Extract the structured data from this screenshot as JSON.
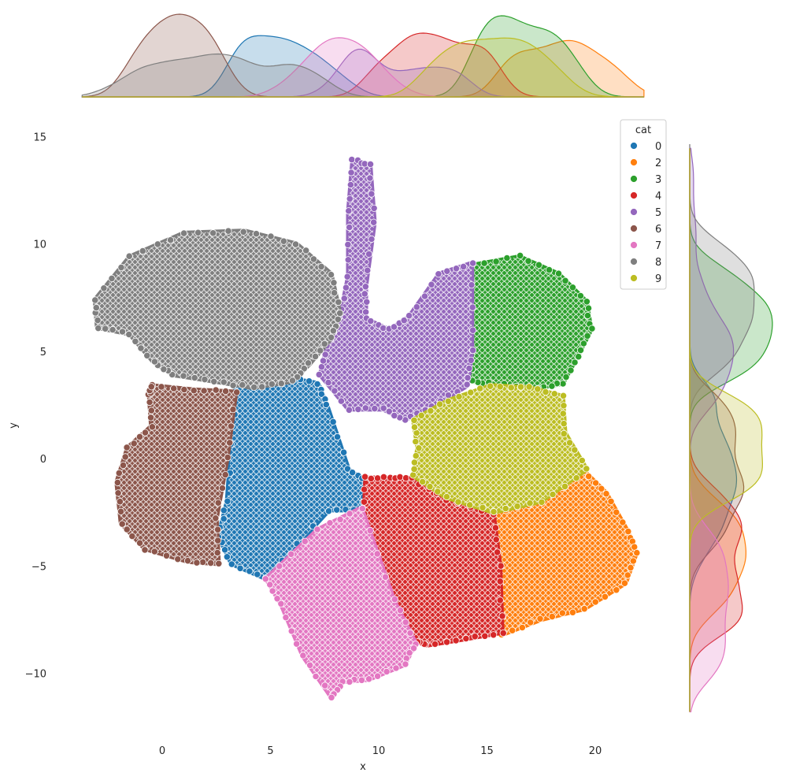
{
  "chart_data": {
    "type": "scatter",
    "title": "",
    "xlabel": "x",
    "ylabel": "y",
    "xlim": [
      -4.2,
      22.9
    ],
    "ylim": [
      -12.8,
      15.5
    ],
    "x_ticks": [
      0,
      5,
      10,
      15,
      20
    ],
    "y_ticks": [
      -10,
      -5,
      0,
      5,
      10,
      15
    ],
    "x_tick_labels": [
      "0",
      "5",
      "10",
      "15",
      "20"
    ],
    "y_tick_labels": [
      "−10",
      "−5",
      "0",
      "5",
      "10",
      "15"
    ],
    "grid": false,
    "legend": {
      "title": "cat",
      "placement": "top-right",
      "entries": [
        "0",
        "2",
        "3",
        "4",
        "5",
        "6",
        "7",
        "8",
        "9"
      ]
    },
    "marginals": {
      "top": "kde of x per cat",
      "right": "kde of y per cat"
    },
    "series": [
      {
        "name": "0",
        "color": "#1f77b4",
        "polygon": [
          [
            3.4,
            3.4
          ],
          [
            5.5,
            3.8
          ],
          [
            7.2,
            3.5
          ],
          [
            7.6,
            2.5
          ],
          [
            8.6,
            -0.5
          ],
          [
            9.4,
            -1.1
          ],
          [
            9.2,
            -2.4
          ],
          [
            7.7,
            -2.4
          ],
          [
            4.8,
            -5.6
          ],
          [
            3.2,
            -4.9
          ],
          [
            2.6,
            -3.6
          ],
          [
            3,
            -2
          ]
        ]
      },
      {
        "name": "2",
        "color": "#ff7f0e",
        "polygon": [
          [
            15.3,
            -2.5
          ],
          [
            17.5,
            -2
          ],
          [
            19.5,
            -0.6
          ],
          [
            20.5,
            -1.6
          ],
          [
            21.5,
            -3.4
          ],
          [
            21.9,
            -4.4
          ],
          [
            21.4,
            -5.8
          ],
          [
            19.5,
            -7
          ],
          [
            17.5,
            -7.5
          ],
          [
            15.7,
            -8.2
          ],
          [
            15.6,
            -5
          ]
        ]
      },
      {
        "name": "3",
        "color": "#2ca02c",
        "polygon": [
          [
            14.3,
            9
          ],
          [
            16.5,
            9.4
          ],
          [
            18.3,
            8.6
          ],
          [
            19.6,
            7.3
          ],
          [
            19.8,
            6
          ],
          [
            19.2,
            4.8
          ],
          [
            18.5,
            3.5
          ],
          [
            17.4,
            3.3
          ],
          [
            15.3,
            3.5
          ],
          [
            14.3,
            3.6
          ],
          [
            14.2,
            6
          ]
        ]
      },
      {
        "name": "4",
        "color": "#d62728",
        "polygon": [
          [
            9.4,
            -0.9
          ],
          [
            10.5,
            -0.9
          ],
          [
            11.5,
            -0.9
          ],
          [
            13.1,
            -1.9
          ],
          [
            15.3,
            -2.6
          ],
          [
            15.6,
            -5
          ],
          [
            15.7,
            -8.1
          ],
          [
            14,
            -8.4
          ],
          [
            12.2,
            -8.7
          ],
          [
            11.6,
            -8.5
          ],
          [
            10.7,
            -6.8
          ],
          [
            9.3,
            -3.2
          ]
        ]
      },
      {
        "name": "5",
        "color": "#9467bd",
        "polygon": [
          [
            8.8,
            13.9
          ],
          [
            9.6,
            13.7
          ],
          [
            9.8,
            11
          ],
          [
            9.4,
            8
          ],
          [
            9.4,
            6.5
          ],
          [
            10.5,
            6
          ],
          [
            11.4,
            6.6
          ],
          [
            12.8,
            8.6
          ],
          [
            14.3,
            9.1
          ],
          [
            14.3,
            5
          ],
          [
            14.1,
            3.4
          ],
          [
            12.4,
            2.4
          ],
          [
            11.2,
            1.8
          ],
          [
            10.2,
            2.3
          ],
          [
            8.6,
            2.3
          ],
          [
            7.3,
            3.9
          ],
          [
            7.6,
            5.2
          ],
          [
            8.2,
            6.5
          ],
          [
            8.6,
            8.5
          ],
          [
            8.6,
            11.5
          ]
        ]
      },
      {
        "name": "6",
        "color": "#8c564b",
        "polygon": [
          [
            -0.5,
            3.4
          ],
          [
            1.5,
            3.2
          ],
          [
            3.4,
            3.1
          ],
          [
            3,
            0
          ],
          [
            2.5,
            -2.8
          ],
          [
            2.6,
            -4.9
          ],
          [
            1.2,
            -4.8
          ],
          [
            -0.8,
            -4.2
          ],
          [
            -1.9,
            -3
          ],
          [
            -2.1,
            -1.1
          ],
          [
            -1.6,
            0.5
          ],
          [
            -0.5,
            1.5
          ],
          [
            -0.6,
            3
          ]
        ]
      },
      {
        "name": "7",
        "color": "#e377c2",
        "polygon": [
          [
            4.8,
            -5.6
          ],
          [
            7.2,
            -3.3
          ],
          [
            9.2,
            -2.3
          ],
          [
            10.7,
            -6.6
          ],
          [
            11.7,
            -8.6
          ],
          [
            11.2,
            -9.6
          ],
          [
            9.5,
            -10.3
          ],
          [
            8.3,
            -10.4
          ],
          [
            7.8,
            -11.1
          ],
          [
            6.5,
            -9.2
          ],
          [
            5.5,
            -6.8
          ]
        ]
      },
      {
        "name": "8",
        "color": "#7f7f7f",
        "polygon": [
          [
            -3.1,
            7.4
          ],
          [
            -1.5,
            9.4
          ],
          [
            1,
            10.5
          ],
          [
            3.8,
            10.6
          ],
          [
            6.2,
            10
          ],
          [
            7.8,
            8.6
          ],
          [
            8.2,
            6.8
          ],
          [
            7.8,
            5.6
          ],
          [
            6.8,
            4.4
          ],
          [
            6,
            3.6
          ],
          [
            4.2,
            3.3
          ],
          [
            2.4,
            3.6
          ],
          [
            0.5,
            3.9
          ],
          [
            -0.4,
            4.5
          ],
          [
            -1.5,
            5.8
          ],
          [
            -3,
            6.1
          ]
        ]
      },
      {
        "name": "9",
        "color": "#bcbd22",
        "polygon": [
          [
            11.6,
            1.8
          ],
          [
            13.2,
            2.7
          ],
          [
            15.2,
            3.4
          ],
          [
            17,
            3.3
          ],
          [
            18.5,
            2.9
          ],
          [
            18.6,
            1.2
          ],
          [
            19.6,
            -0.5
          ],
          [
            17.5,
            -2
          ],
          [
            15.3,
            -2.5
          ],
          [
            13.1,
            -1.8
          ],
          [
            11.6,
            -0.8
          ],
          [
            11.8,
            0.5
          ]
        ]
      }
    ]
  }
}
